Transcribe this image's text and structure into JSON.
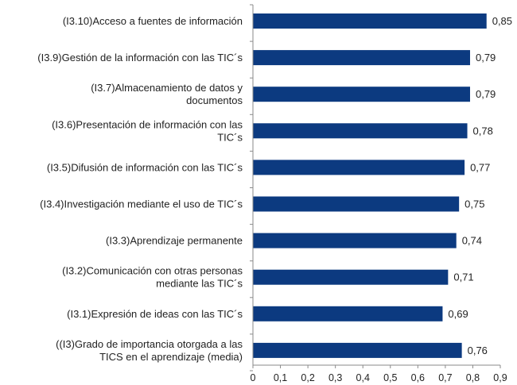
{
  "chart_data": {
    "type": "bar",
    "orientation": "horizontal",
    "categories": [
      "(I3.10)Acceso a fuentes de información",
      "(I3.9)Gestión de la información con las TIC´s",
      "(I3.7)Almacenamiento de datos y documentos",
      "(I3.6)Presentación de información con las TIC´s",
      "(I3.5)Difusión de información con las TIC´s",
      "(I3.4)Investigación mediante el uso de TIC´s",
      "(I3.3)Aprendizaje permanente",
      "(I3.2)Comunicación con otras personas mediante las TIC´s",
      "(I3.1)Expresión de ideas con las TIC´s",
      "((I3)Grado de importancia otorgada a las TICS en el aprendizaje (media)"
    ],
    "category_lines": [
      [
        "(I3.10)Acceso a fuentes de información"
      ],
      [
        "(I3.9)Gestión de la información con las TIC´s"
      ],
      [
        "(I3.7)Almacenamiento de datos y",
        "documentos"
      ],
      [
        "(I3.6)Presentación de información con las",
        "TIC´s"
      ],
      [
        "(I3.5)Difusión de información con las TIC´s"
      ],
      [
        "(I3.4)Investigación mediante el uso de TIC´s"
      ],
      [
        "(I3.3)Aprendizaje permanente"
      ],
      [
        "(I3.2)Comunicación con otras personas",
        "mediante las TIC´s"
      ],
      [
        "(I3.1)Expresión de ideas con las TIC´s"
      ],
      [
        "((I3)Grado de importancia otorgada a las",
        "TICS en el aprendizaje (media)"
      ]
    ],
    "values": [
      0.85,
      0.79,
      0.79,
      0.78,
      0.77,
      0.75,
      0.74,
      0.71,
      0.69,
      0.76
    ],
    "value_labels": [
      "0,85",
      "0,79",
      "0,79",
      "0,78",
      "0,77",
      "0,75",
      "0,74",
      "0,71",
      "0,69",
      "0,76"
    ],
    "x_ticks": [
      0,
      0.1,
      0.2,
      0.3,
      0.4,
      0.5,
      0.6,
      0.7,
      0.8,
      0.9
    ],
    "x_tick_labels": [
      "0",
      "0,1",
      "0,2",
      "0,3",
      "0,4",
      "0,5",
      "0,6",
      "0,7",
      "0,8",
      "0,9"
    ],
    "xlim": [
      0,
      0.9
    ],
    "title": "",
    "xlabel": "",
    "ylabel": "",
    "grid": false,
    "legend": "none",
    "bar_color": "#0c3a80",
    "axis_color": "#8a8a8a",
    "text_color": "#222222"
  }
}
